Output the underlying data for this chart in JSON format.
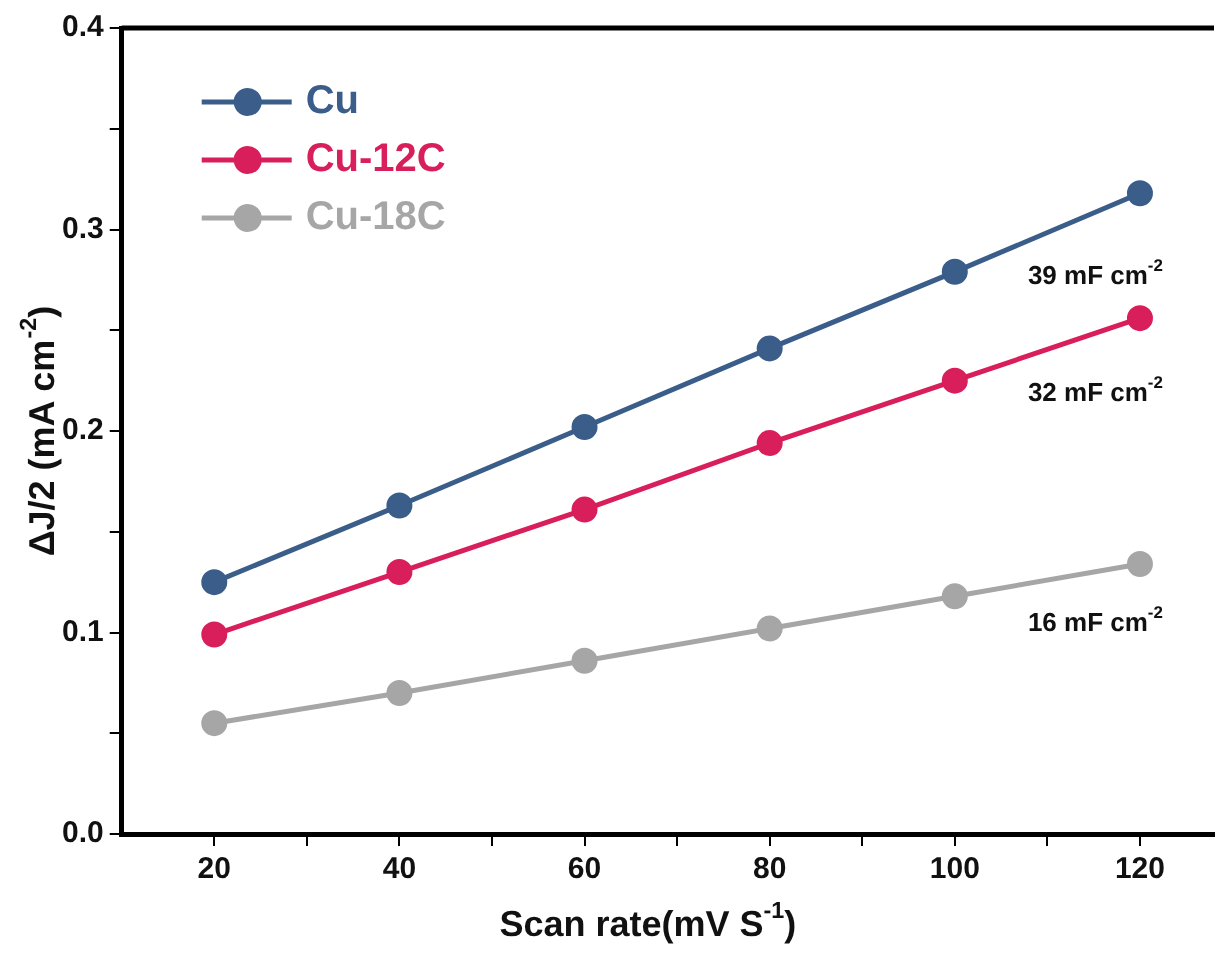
{
  "chart_data": {
    "type": "line",
    "xlabel": "Scan rate(mV S$^{-1}$)",
    "ylabel": "ΔJ/2 (mA cm$^{-2}$)",
    "x": [
      20,
      40,
      60,
      80,
      100,
      120
    ],
    "series": [
      {
        "name": "Cu",
        "color": "#3a5d8a",
        "values": [
          0.125,
          0.163,
          0.202,
          0.241,
          0.279,
          0.318
        ]
      },
      {
        "name": "Cu-12C",
        "color": "#d81e5b",
        "values": [
          0.099,
          0.13,
          0.161,
          0.194,
          0.225,
          0.256
        ]
      },
      {
        "name": "Cu-18C",
        "color": "#a6a6a6",
        "values": [
          0.055,
          0.07,
          0.086,
          0.102,
          0.118,
          0.134
        ]
      }
    ],
    "xlim": [
      10,
      128
    ],
    "xticks": [
      20,
      {
        "value": 30,
        "label": null
      },
      40,
      {
        "value": 50,
        "label": null
      },
      60,
      {
        "value": 70,
        "label": null
      },
      80,
      {
        "value": 90,
        "label": null
      },
      100,
      {
        "value": 110,
        "label": null
      },
      120
    ],
    "ylim": [
      0,
      0.4
    ],
    "yticks": [
      {
        "value": 0,
        "label": "0.0"
      },
      {
        "value": 0.05,
        "label": null
      },
      0.1,
      {
        "value": 0.15,
        "label": null
      },
      0.2,
      {
        "value": 0.25,
        "label": null
      },
      0.3,
      {
        "value": 0.35,
        "label": null
      },
      0.4
    ],
    "annotations": [
      "39 mF cm$^{-2}$",
      "32 mF cm$^{-2}$",
      "16 mF cm$^{-2}$"
    ],
    "grid": false,
    "legend": "top left",
    "marker": "circle",
    "line_style": "solid"
  }
}
